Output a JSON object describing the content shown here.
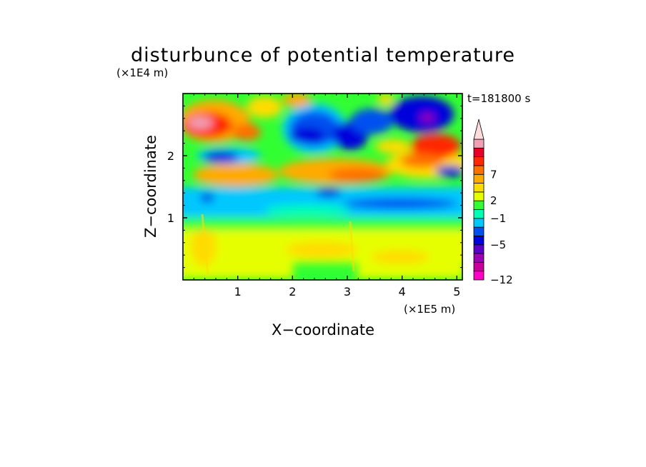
{
  "chart_data": {
    "type": "heatmap",
    "title": "disturbunce of potential temperature",
    "xlabel": "X−coordinate",
    "ylabel": "Z−coordinate",
    "x_unit": "(×1E5 m)",
    "y_unit": "(×1E4 m)",
    "time_label": "t=181800 s",
    "xlim": [
      0,
      5.1
    ],
    "ylim": [
      0,
      3.0
    ],
    "x_ticks": [
      {
        "value": 1,
        "label": "1"
      },
      {
        "value": 2,
        "label": "2"
      },
      {
        "value": 3,
        "label": "3"
      },
      {
        "value": 4,
        "label": "4"
      },
      {
        "value": 5,
        "label": "5"
      }
    ],
    "y_ticks": [
      {
        "value": 1,
        "label": "1"
      },
      {
        "value": 2,
        "label": "2"
      }
    ],
    "colorbar": {
      "levels": [
        -12,
        -11,
        -9,
        -7,
        -5,
        -4,
        -3,
        -1,
        0,
        2,
        3,
        5,
        7,
        8,
        9,
        11
      ],
      "labels": [
        {
          "value": -12,
          "label": "−12"
        },
        {
          "value": -5,
          "label": "−5"
        },
        {
          "value": -1,
          "label": "−1"
        },
        {
          "value": 2,
          "label": "2"
        },
        {
          "value": 7,
          "label": "7"
        }
      ],
      "colors": [
        "#ff00c8",
        "#c8009b",
        "#9b00b4",
        "#5a00c8",
        "#0000dc",
        "#0050f0",
        "#00c8ff",
        "#00ffb4",
        "#32ff32",
        "#e6ff00",
        "#ffdc00",
        "#ffaa00",
        "#ff6e00",
        "#ff2800",
        "#e60028",
        "#f0a0b4",
        "#ffdcdc"
      ]
    }
  }
}
